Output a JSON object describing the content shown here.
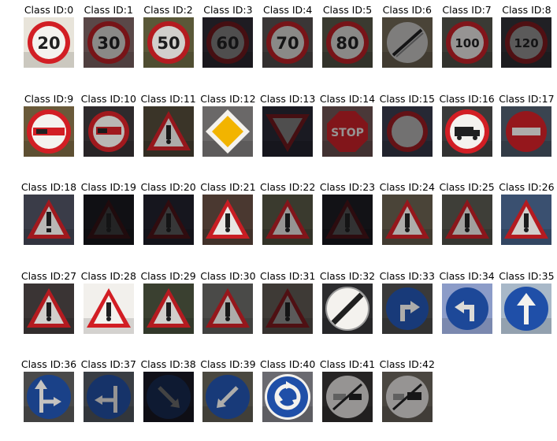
{
  "label_prefix": "Class ID:",
  "classes": [
    {
      "id": "0",
      "label": "Class ID:0",
      "sign": "speed-limit",
      "text": "20",
      "bg": "#e8e4da",
      "tone": 1.0
    },
    {
      "id": "1",
      "label": "Class ID:1",
      "sign": "speed-limit",
      "text": "30",
      "bg": "#5a4848",
      "tone": 0.55
    },
    {
      "id": "2",
      "label": "Class ID:2",
      "sign": "speed-limit",
      "text": "50",
      "bg": "#5a5838",
      "tone": 0.85
    },
    {
      "id": "3",
      "label": "Class ID:3",
      "sign": "speed-limit",
      "text": "60",
      "bg": "#1e1c22",
      "tone": 0.3
    },
    {
      "id": "4",
      "label": "Class ID:4",
      "sign": "speed-limit",
      "text": "70",
      "bg": "#3a3636",
      "tone": 0.55
    },
    {
      "id": "5",
      "label": "Class ID:5",
      "sign": "speed-limit",
      "text": "80",
      "bg": "#3a3a30",
      "tone": 0.55
    },
    {
      "id": "6",
      "label": "Class ID:6",
      "sign": "end-restriction",
      "text": "",
      "bg": "#4a4438",
      "tone": 0.5
    },
    {
      "id": "7",
      "label": "Class ID:7",
      "sign": "speed-limit",
      "text": "100",
      "bg": "#3a3a34",
      "tone": 0.6
    },
    {
      "id": "8",
      "label": "Class ID:8",
      "sign": "speed-limit",
      "text": "120",
      "bg": "#202024",
      "tone": 0.35
    },
    {
      "id": "9",
      "label": "Class ID:9",
      "sign": "no-passing",
      "text": "",
      "bg": "#6a5a3a",
      "tone": 1.0
    },
    {
      "id": "10",
      "label": "Class ID:10",
      "sign": "no-passing-trucks",
      "text": "",
      "bg": "#2e2a2c",
      "tone": 0.75
    },
    {
      "id": "11",
      "label": "Class ID:11",
      "sign": "warning",
      "text": "",
      "bg": "#3a3428",
      "tone": 0.7
    },
    {
      "id": "12",
      "label": "Class ID:12",
      "sign": "priority-road",
      "text": "",
      "bg": "#6a6868",
      "tone": 1.0
    },
    {
      "id": "13",
      "label": "Class ID:13",
      "sign": "yield",
      "text": "",
      "bg": "#1a1a22",
      "tone": 0.3
    },
    {
      "id": "14",
      "label": "Class ID:14",
      "sign": "stop",
      "text": "STOP",
      "bg": "#4a3838",
      "tone": 0.6
    },
    {
      "id": "15",
      "label": "Class ID:15",
      "sign": "no-vehicles",
      "text": "",
      "bg": "#262834",
      "tone": 0.45
    },
    {
      "id": "16",
      "label": "Class ID:16",
      "sign": "no-trucks",
      "text": "",
      "bg": "#3a3a3a",
      "tone": 1.0
    },
    {
      "id": "17",
      "label": "Class ID:17",
      "sign": "no-entry",
      "text": "",
      "bg": "#3a4450",
      "tone": 0.7
    },
    {
      "id": "18",
      "label": "Class ID:18",
      "sign": "warning-excl",
      "text": "",
      "bg": "#3a3c48",
      "tone": 0.75
    },
    {
      "id": "19",
      "label": "Class ID:19",
      "sign": "warning",
      "text": "",
      "bg": "#101014",
      "tone": 0.12
    },
    {
      "id": "20",
      "label": "Class ID:20",
      "sign": "warning",
      "text": "",
      "bg": "#16161e",
      "tone": 0.2
    },
    {
      "id": "21",
      "label": "Class ID:21",
      "sign": "warning",
      "text": "",
      "bg": "#4a3830",
      "tone": 0.95
    },
    {
      "id": "22",
      "label": "Class ID:22",
      "sign": "warning",
      "text": "",
      "bg": "#3a3a2e",
      "tone": 0.6
    },
    {
      "id": "23",
      "label": "Class ID:23",
      "sign": "warning",
      "text": "",
      "bg": "#121216",
      "tone": 0.18
    },
    {
      "id": "24",
      "label": "Class ID:24",
      "sign": "warning",
      "text": "",
      "bg": "#4a4438",
      "tone": 0.7
    },
    {
      "id": "25",
      "label": "Class ID:25",
      "sign": "warning",
      "text": "",
      "bg": "#3e3e38",
      "tone": 0.65
    },
    {
      "id": "26",
      "label": "Class ID:26",
      "sign": "warning",
      "text": "",
      "bg": "#3a5070",
      "tone": 0.85
    },
    {
      "id": "27",
      "label": "Class ID:27",
      "sign": "warning",
      "text": "",
      "bg": "#3a3434",
      "tone": 0.85
    },
    {
      "id": "28",
      "label": "Class ID:28",
      "sign": "warning",
      "text": "",
      "bg": "#f2f0ec",
      "tone": 1.0
    },
    {
      "id": "29",
      "label": "Class ID:29",
      "sign": "warning",
      "text": "",
      "bg": "#3a4030",
      "tone": 0.85
    },
    {
      "id": "30",
      "label": "Class ID:30",
      "sign": "warning",
      "text": "",
      "bg": "#4a4a48",
      "tone": 0.7
    },
    {
      "id": "31",
      "label": "Class ID:31",
      "sign": "warning",
      "text": "",
      "bg": "#3e3a36",
      "tone": 0.35
    },
    {
      "id": "32",
      "label": "Class ID:32",
      "sign": "end-all",
      "text": "",
      "bg": "#2c2c2e",
      "tone": 1.0
    },
    {
      "id": "33",
      "label": "Class ID:33",
      "sign": "turn-right",
      "text": "",
      "bg": "#3a3a3a",
      "tone": 0.7
    },
    {
      "id": "34",
      "label": "Class ID:34",
      "sign": "turn-left",
      "text": "",
      "bg": "#8c9cc8",
      "tone": 0.9
    },
    {
      "id": "35",
      "label": "Class ID:35",
      "sign": "ahead-only",
      "text": "",
      "bg": "#a8b8c8",
      "tone": 1.0
    },
    {
      "id": "36",
      "label": "Class ID:36",
      "sign": "straight-right",
      "text": "",
      "bg": "#4a4a4a",
      "tone": 0.8
    },
    {
      "id": "37",
      "label": "Class ID:37",
      "sign": "straight-left",
      "text": "",
      "bg": "#3a3e44",
      "tone": 0.6
    },
    {
      "id": "38",
      "label": "Class ID:38",
      "sign": "keep-right",
      "text": "",
      "bg": "#101018",
      "tone": 0.25
    },
    {
      "id": "39",
      "label": "Class ID:39",
      "sign": "keep-left",
      "text": "",
      "bg": "#4a4840",
      "tone": 0.7
    },
    {
      "id": "40",
      "label": "Class ID:40",
      "sign": "roundabout",
      "text": "",
      "bg": "#6a6a70",
      "tone": 1.0
    },
    {
      "id": "41",
      "label": "Class ID:41",
      "sign": "end-no-passing",
      "text": "",
      "bg": "#262424",
      "tone": 0.6
    },
    {
      "id": "42",
      "label": "Class ID:42",
      "sign": "end-no-passing-trucks",
      "text": "",
      "bg": "#4a4640",
      "tone": 0.6
    }
  ]
}
